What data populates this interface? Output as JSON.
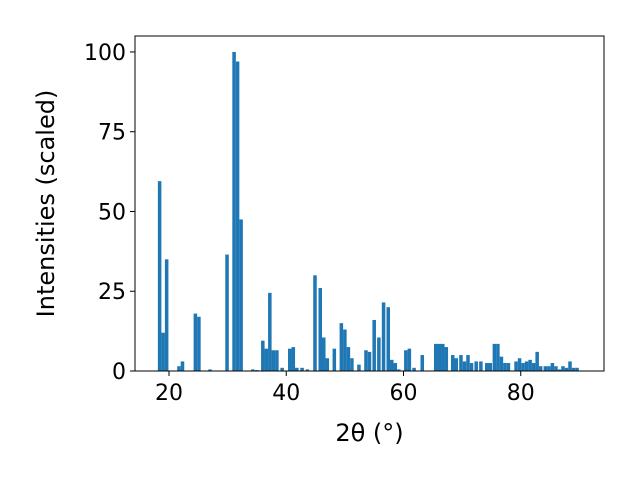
{
  "chart_data": {
    "type": "bar",
    "title": "",
    "xlabel": "2θ (°)",
    "ylabel": "Intensities (scaled)",
    "xlim": [
      14.2,
      94.2
    ],
    "ylim": [
      0,
      105
    ],
    "xticks": [
      20,
      40,
      60,
      80
    ],
    "yticks": [
      0,
      25,
      50,
      75,
      100
    ],
    "grid": false,
    "bar_color": "#1f77b4",
    "bar_width": 0.6,
    "x": [
      18.4,
      19.0,
      19.6,
      21.7,
      22.3,
      24.5,
      25.1,
      27.0,
      29.9,
      31.1,
      31.7,
      32.3,
      34.3,
      35.0,
      36.0,
      36.6,
      37.2,
      37.8,
      38.4,
      39.3,
      40.6,
      41.2,
      41.8,
      42.7,
      43.6,
      44.9,
      45.8,
      46.4,
      47.0,
      48.2,
      49.4,
      50.0,
      50.6,
      51.2,
      52.4,
      53.6,
      54.2,
      55.0,
      55.8,
      56.6,
      57.4,
      58.0,
      58.6,
      59.2,
      60.4,
      61.0,
      61.8,
      63.2,
      65.5,
      66.1,
      66.7,
      67.3,
      68.4,
      69.0,
      69.8,
      70.4,
      71.0,
      71.6,
      72.4,
      73.2,
      74.2,
      74.8,
      75.5,
      76.1,
      76.7,
      77.3,
      77.9,
      79.2,
      79.8,
      80.4,
      81.0,
      81.6,
      82.2,
      82.8,
      83.4,
      84.2,
      84.8,
      85.4,
      86.0,
      86.6,
      87.2,
      87.8,
      88.4,
      89.0,
      89.6
    ],
    "values": [
      59.5,
      12.0,
      35.0,
      1.5,
      3.0,
      18.0,
      17.0,
      0.5,
      36.5,
      100.0,
      97.0,
      47.5,
      0.5,
      0.3,
      9.5,
      7.0,
      24.5,
      6.5,
      6.5,
      1.0,
      7.0,
      7.5,
      1.0,
      1.0,
      0.5,
      30.0,
      26.0,
      10.5,
      4.0,
      7.0,
      15.0,
      13.0,
      7.5,
      4.0,
      2.0,
      6.5,
      6.0,
      16.0,
      10.5,
      21.5,
      20.0,
      3.5,
      2.5,
      0.5,
      6.5,
      7.0,
      1.0,
      5.0,
      8.5,
      8.5,
      8.5,
      7.5,
      5.0,
      4.0,
      5.0,
      3.0,
      5.0,
      2.5,
      3.0,
      3.0,
      2.5,
      2.5,
      8.5,
      8.5,
      4.5,
      2.5,
      2.5,
      3.0,
      4.0,
      2.5,
      3.0,
      3.5,
      2.5,
      6.0,
      1.5,
      1.5,
      1.5,
      2.5,
      1.5,
      0.5,
      1.5,
      1.0,
      3.0,
      1.0,
      1.0
    ]
  }
}
